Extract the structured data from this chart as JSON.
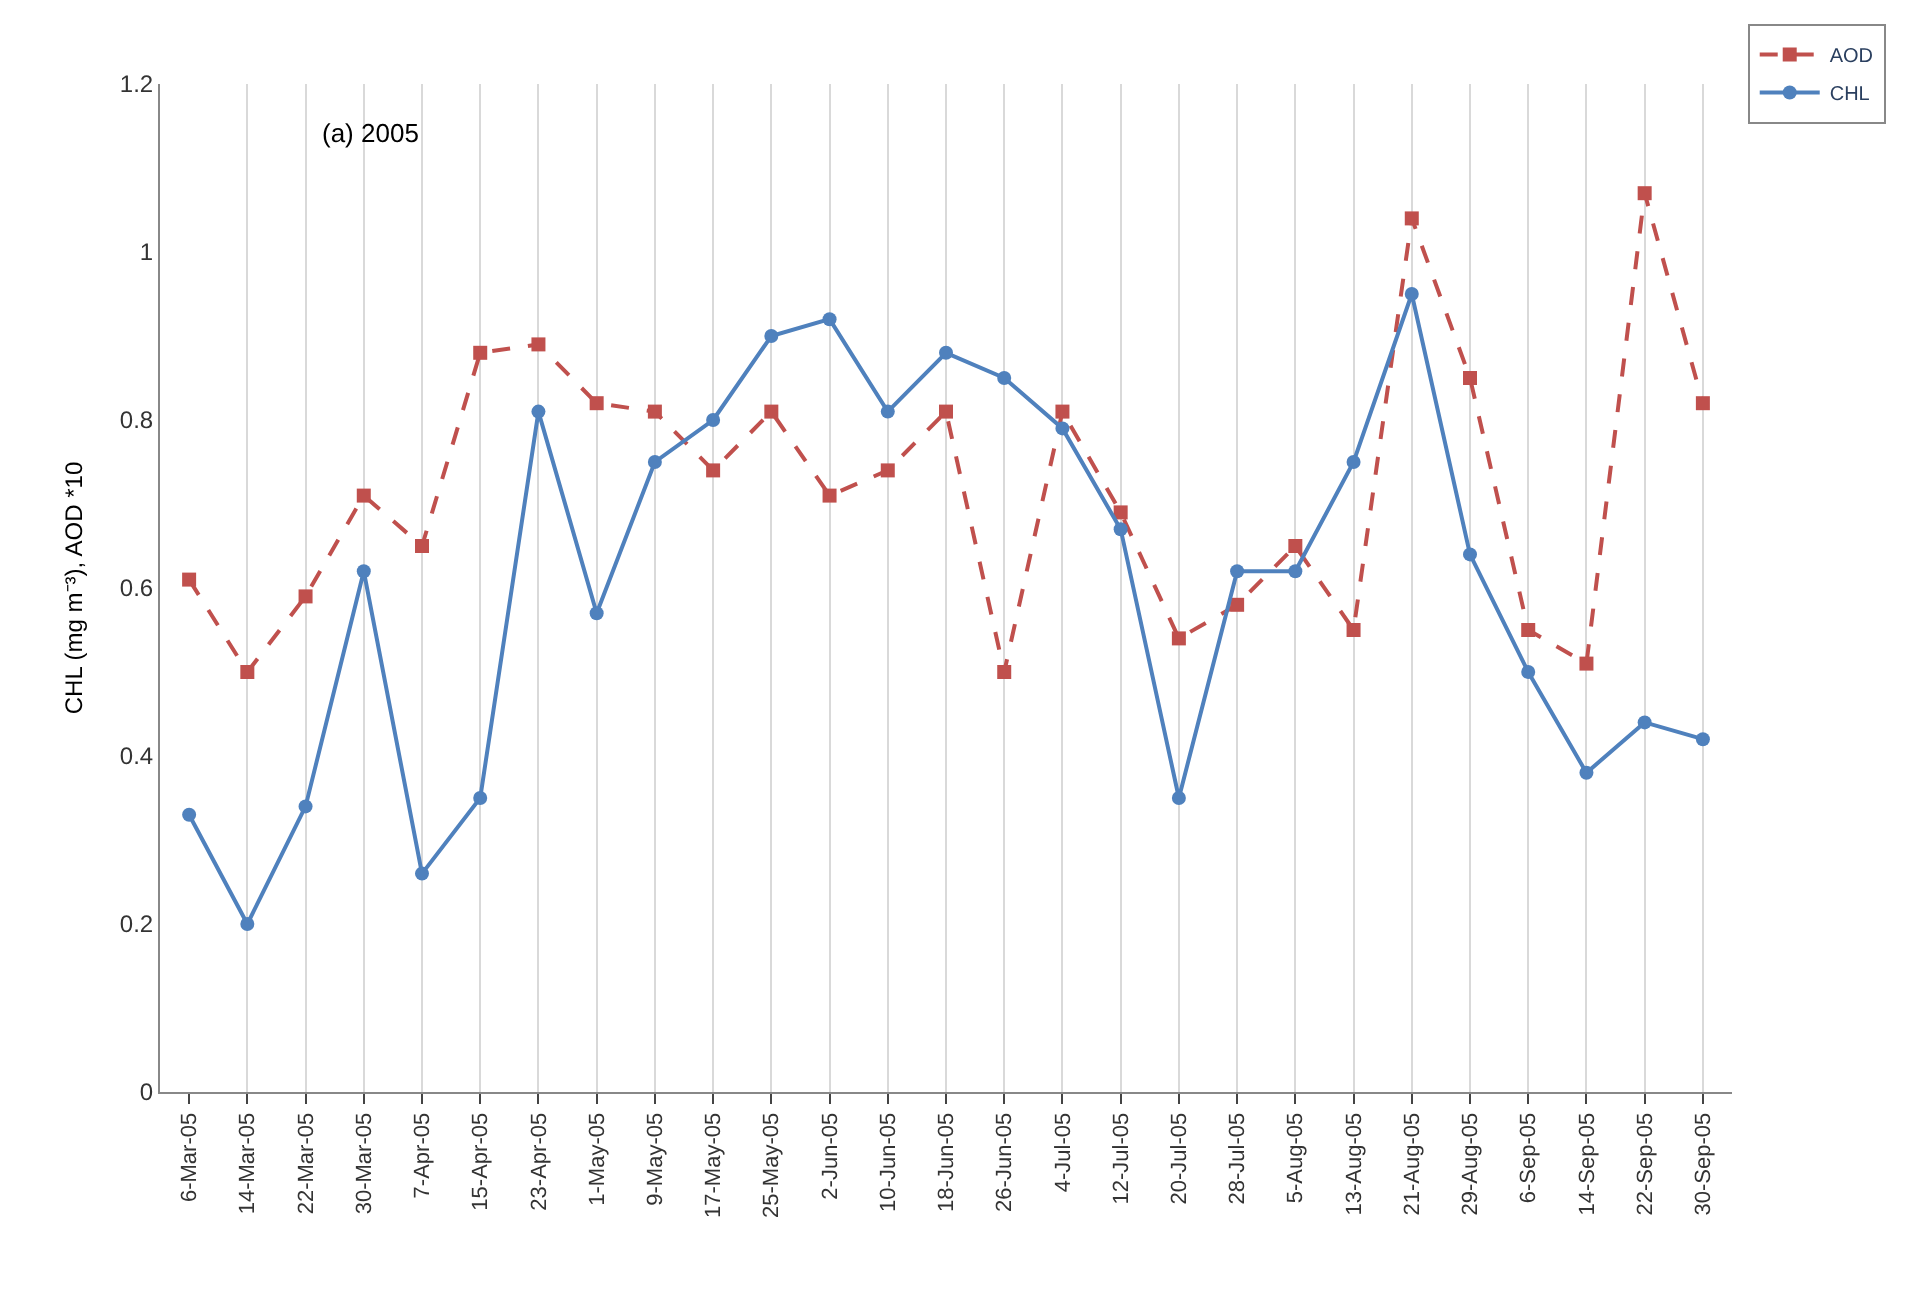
{
  "chart_data": {
    "type": "line",
    "ylabel": "CHL (mg m⁻³), AOD *10",
    "annotations": [
      "(a) 2005"
    ],
    "categories": [
      "6-Mar-05",
      "14-Mar-05",
      "22-Mar-05",
      "30-Mar-05",
      "7-Apr-05",
      "15-Apr-05",
      "23-Apr-05",
      "1-May-05",
      "9-May-05",
      "17-May-05",
      "25-May-05",
      "2-Jun-05",
      "10-Jun-05",
      "18-Jun-05",
      "26-Jun-05",
      "4-Jul-05",
      "12-Jul-05",
      "20-Jul-05",
      "28-Jul-05",
      "5-Aug-05",
      "13-Aug-05",
      "21-Aug-05",
      "29-Aug-05",
      "6-Sep-05",
      "14-Sep-05",
      "22-Sep-05",
      "30-Sep-05"
    ],
    "series": [
      {
        "name": "AOD",
        "color": "#c0504d",
        "marker": "square",
        "line_style": "dashed",
        "values": [
          0.61,
          0.5,
          0.59,
          0.71,
          0.65,
          0.88,
          0.89,
          0.82,
          0.81,
          0.74,
          0.81,
          0.71,
          0.74,
          0.81,
          0.5,
          0.81,
          0.69,
          0.54,
          0.58,
          0.65,
          0.55,
          1.04,
          0.85,
          0.55,
          0.51,
          1.07,
          0.82
        ]
      },
      {
        "name": "CHL",
        "color": "#4f81bd",
        "marker": "circle",
        "line_style": "solid",
        "values": [
          0.33,
          0.2,
          0.34,
          0.62,
          0.26,
          0.35,
          0.81,
          0.57,
          0.75,
          0.8,
          0.9,
          0.92,
          0.81,
          0.88,
          0.85,
          0.79,
          0.67,
          0.35,
          0.62,
          0.62,
          0.75,
          0.95,
          0.64,
          0.5,
          0.38,
          0.44,
          0.42
        ]
      }
    ],
    "ylim": [
      0,
      1.2
    ],
    "yticks": [
      0,
      0.2,
      0.4,
      0.6,
      0.8,
      1,
      1.2
    ],
    "grid": "x",
    "legend": "top right"
  }
}
